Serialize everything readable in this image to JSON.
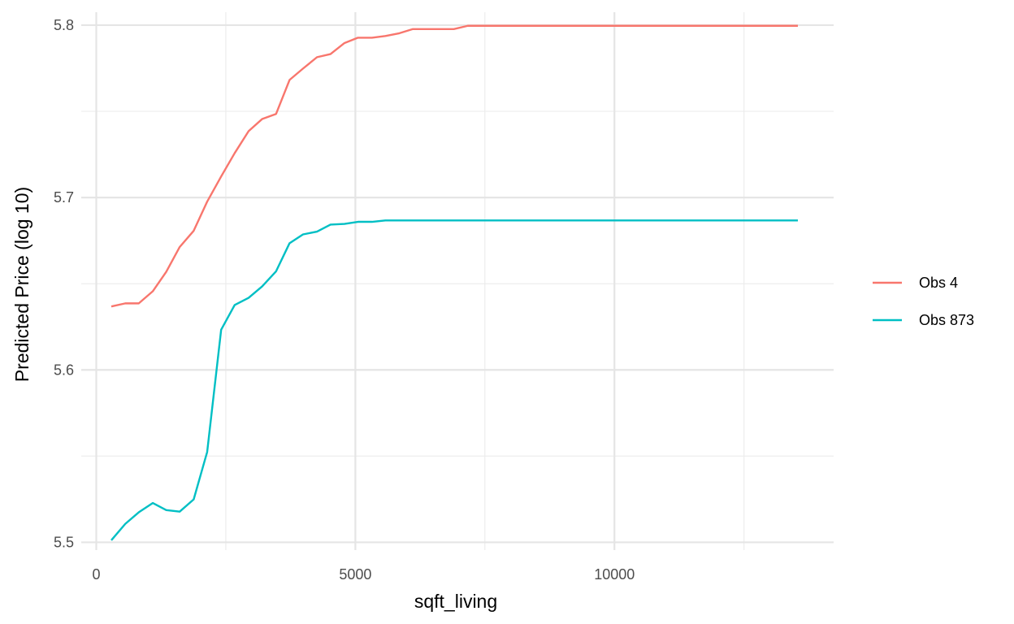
{
  "chart_data": {
    "type": "line",
    "title": "",
    "xlabel": "sqft_living",
    "ylabel": "Predicted Price (log 10)",
    "xlim": [
      -290,
      14230
    ],
    "ylim": [
      5.4955,
      5.8075
    ],
    "x_ticks": [
      0,
      5000,
      10000
    ],
    "x_tick_labels": [
      "0",
      "5000",
      "10000"
    ],
    "x_minor_ticks": [
      2500,
      7500,
      12500
    ],
    "y_ticks": [
      5.5,
      5.6,
      5.7,
      5.8
    ],
    "y_tick_labels": [
      "5.5",
      "5.6",
      "5.7",
      "5.8"
    ],
    "y_minor_ticks": [
      5.55,
      5.65,
      5.75
    ],
    "grid": true,
    "legend_position": "right",
    "series": [
      {
        "name": "Obs 4",
        "color": "#F8766D",
        "points": [
          [
            290,
            5.6368
          ],
          [
            560,
            5.6386
          ],
          [
            820,
            5.6386
          ],
          [
            1090,
            5.6456
          ],
          [
            1350,
            5.6569
          ],
          [
            1610,
            5.6713
          ],
          [
            1880,
            5.6807
          ],
          [
            2140,
            5.6976
          ],
          [
            2410,
            5.7122
          ],
          [
            2670,
            5.7257
          ],
          [
            2940,
            5.7385
          ],
          [
            3200,
            5.7455
          ],
          [
            3470,
            5.7485
          ],
          [
            3730,
            5.7682
          ],
          [
            3990,
            5.7748
          ],
          [
            4260,
            5.7814
          ],
          [
            4520,
            5.7832
          ],
          [
            4790,
            5.7896
          ],
          [
            5050,
            5.7927
          ],
          [
            5320,
            5.7927
          ],
          [
            5580,
            5.7937
          ],
          [
            5850,
            5.7953
          ],
          [
            6110,
            5.7977
          ],
          [
            6380,
            5.7977
          ],
          [
            6640,
            5.7977
          ],
          [
            6900,
            5.7977
          ],
          [
            7170,
            5.7996
          ],
          [
            7430,
            5.7996
          ],
          [
            13540,
            5.7996
          ]
        ]
      },
      {
        "name": "Obs 873",
        "color": "#00BFC4",
        "points": [
          [
            290,
            5.5012
          ],
          [
            560,
            5.5107
          ],
          [
            820,
            5.5174
          ],
          [
            1090,
            5.5228
          ],
          [
            1350,
            5.5187
          ],
          [
            1610,
            5.5178
          ],
          [
            1880,
            5.5249
          ],
          [
            2140,
            5.5524
          ],
          [
            2410,
            5.6233
          ],
          [
            2670,
            5.6376
          ],
          [
            2940,
            5.6418
          ],
          [
            3200,
            5.6484
          ],
          [
            3470,
            5.6572
          ],
          [
            3730,
            5.6735
          ],
          [
            3990,
            5.6786
          ],
          [
            4260,
            5.6802
          ],
          [
            4520,
            5.6843
          ],
          [
            4790,
            5.6847
          ],
          [
            5050,
            5.6859
          ],
          [
            5320,
            5.6859
          ],
          [
            5580,
            5.6867
          ],
          [
            13540,
            5.6867
          ]
        ]
      }
    ]
  }
}
